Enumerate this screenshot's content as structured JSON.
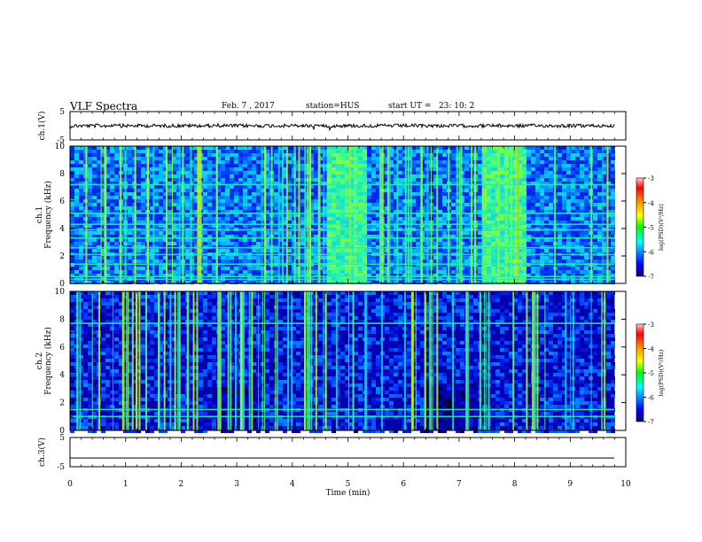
{
  "header": {
    "title": "VLF Spectra",
    "date": "Feb. 7 , 2017",
    "station": "station=HUS",
    "start_ut": "start UT =   23: 10: 2"
  },
  "chart_data": [
    {
      "type": "line",
      "name": "ch1-waveform",
      "ylabel": "ch.1(V)",
      "ylim": [
        -5,
        5
      ],
      "y_ticks": [
        "5",
        "-5"
      ],
      "approx_level": 0,
      "x_range": [
        0,
        9.8
      ]
    },
    {
      "type": "heatmap",
      "name": "ch1-spectrogram",
      "ylabel": "ch.1\nFrequency  (kHz)",
      "ylim": [
        0,
        10
      ],
      "y_ticks": [
        "0",
        "2",
        "4",
        "6",
        "8",
        "10"
      ],
      "x_range": [
        0,
        9.8
      ],
      "colorbar": {
        "label": "log(PSD)(V²/Hz)",
        "range": [
          -7,
          -3
        ],
        "ticks": [
          "-3",
          "-4",
          "-5",
          "-6",
          "-7"
        ]
      },
      "active_intervals_min": [
        [
          4.6,
          5.3
        ],
        [
          7.4,
          8.2
        ]
      ],
      "hum_lines_khz": [
        0.3,
        0.5,
        1.4,
        2.1,
        2.6,
        3.3,
        3.9,
        4.3,
        5.1,
        7.2
      ]
    },
    {
      "type": "heatmap",
      "name": "ch2-spectrogram",
      "ylabel": "ch.2\nFrequency  (kHz)",
      "ylim": [
        0,
        10
      ],
      "y_ticks": [
        "0",
        "2",
        "4",
        "6",
        "8",
        "10"
      ],
      "x_range": [
        0,
        9.8
      ],
      "colorbar": {
        "label": "log(PSD)(V²/Hz)",
        "range": [
          -7,
          -3
        ],
        "ticks": [
          "-3",
          "-4",
          "-5",
          "-6",
          "-7"
        ]
      },
      "hum_lines_khz": [
        1.0,
        1.5,
        7.7
      ]
    },
    {
      "type": "line",
      "name": "ch3-waveform",
      "ylabel": "ch.3(V)",
      "ylim": [
        -5,
        5
      ],
      "y_ticks": [
        "5",
        "-5"
      ],
      "approx_level": -2,
      "x_range": [
        0,
        9.8
      ]
    }
  ],
  "x_axis": {
    "label": "Time  (min)",
    "range": [
      0,
      10
    ],
    "ticks": [
      "0",
      "1",
      "2",
      "3",
      "4",
      "5",
      "6",
      "7",
      "8",
      "9",
      "10"
    ]
  },
  "colors": {
    "colormap": [
      "#00007f",
      "#0000ff",
      "#007fff",
      "#00ffff",
      "#7fff7f",
      "#ffff00",
      "#ff7f00",
      "#ff0000",
      "#ffb0b0"
    ]
  }
}
